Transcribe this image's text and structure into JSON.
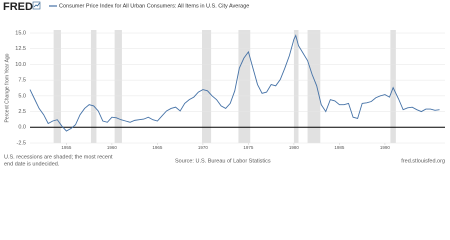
{
  "logo": "FRED",
  "chart_data": {
    "type": "line",
    "y_label": "Percent Change from Year Ago",
    "x": [
      1951.0,
      1951.5,
      1952.0,
      1952.5,
      1953.0,
      1953.5,
      1954.0,
      1954.5,
      1955.0,
      1955.5,
      1956.0,
      1956.5,
      1957.0,
      1957.5,
      1958.0,
      1958.5,
      1959.0,
      1959.5,
      1960.0,
      1960.5,
      1961.0,
      1961.5,
      1962.0,
      1962.5,
      1963.0,
      1963.5,
      1964.0,
      1964.5,
      1965.0,
      1965.5,
      1966.0,
      1966.5,
      1967.0,
      1967.5,
      1968.0,
      1968.5,
      1969.0,
      1969.5,
      1970.0,
      1970.5,
      1971.0,
      1971.5,
      1972.0,
      1972.5,
      1973.0,
      1973.5,
      1974.0,
      1974.5,
      1975.0,
      1975.5,
      1976.0,
      1976.5,
      1977.0,
      1977.5,
      1978.0,
      1978.5,
      1979.0,
      1979.5,
      1980.0,
      1980.2,
      1980.5,
      1981.0,
      1981.5,
      1982.0,
      1982.5,
      1983.0,
      1983.5,
      1984.0,
      1984.5,
      1985.0,
      1985.5,
      1986.0,
      1986.5,
      1987.0,
      1987.5,
      1988.0,
      1988.5,
      1989.0,
      1989.5,
      1990.0,
      1990.5,
      1990.9,
      1991.5,
      1992.0,
      1992.5,
      1993.0,
      1993.5,
      1994.0,
      1994.5,
      1995.0,
      1995.5,
      1996.0
    ],
    "series": [
      {
        "name": "Consumer Price Index for All Urban Consumers: All Items in U.S. City Average",
        "color": "#4572a7",
        "values": [
          6.0,
          4.5,
          3.0,
          2.0,
          0.6,
          1.0,
          1.2,
          0.2,
          -0.6,
          -0.2,
          0.4,
          2.0,
          3.0,
          3.6,
          3.4,
          2.6,
          1.0,
          0.8,
          1.6,
          1.5,
          1.2,
          1.0,
          0.8,
          1.1,
          1.2,
          1.3,
          1.6,
          1.2,
          1.0,
          1.8,
          2.6,
          3.0,
          3.2,
          2.6,
          3.8,
          4.4,
          4.8,
          5.6,
          6.0,
          5.8,
          5.0,
          4.4,
          3.4,
          3.0,
          3.8,
          5.8,
          9.4,
          11.0,
          12.0,
          9.4,
          6.8,
          5.4,
          5.6,
          6.8,
          6.6,
          7.6,
          9.4,
          11.4,
          14.0,
          14.6,
          13.0,
          11.8,
          10.6,
          8.4,
          6.6,
          3.6,
          2.5,
          4.4,
          4.2,
          3.6,
          3.6,
          3.8,
          1.6,
          1.4,
          3.8,
          3.9,
          4.1,
          4.7,
          5.0,
          5.2,
          4.8,
          6.3,
          4.5,
          2.8,
          3.1,
          3.2,
          2.8,
          2.5,
          2.9,
          2.9,
          2.7,
          2.8
        ]
      }
    ],
    "recessions": [
      [
        1953.6,
        1954.4
      ],
      [
        1957.7,
        1958.3
      ],
      [
        1960.3,
        1961.1
      ],
      [
        1969.9,
        1970.9
      ],
      [
        1973.9,
        1975.2
      ],
      [
        1980.0,
        1980.5
      ],
      [
        1981.5,
        1982.9
      ],
      [
        1990.6,
        1991.2
      ]
    ],
    "recession_color": "#e1e1e1",
    "xlim": [
      1951,
      1996.6
    ],
    "xticks": [
      1955,
      1960,
      1965,
      1970,
      1975,
      1980,
      1985,
      1990
    ],
    "ylim": [
      -2.5,
      15
    ],
    "yticks": [
      -2.5,
      {
        "value": 0,
        "label": "0.0"
      },
      2.5,
      {
        "value": 5,
        "label": "5.0"
      },
      7.5,
      {
        "value": 10,
        "label": "10.0"
      },
      12.5,
      {
        "value": 15,
        "label": "15.0"
      }
    ],
    "grid": true,
    "notes": [
      "U.S. recessions are shaded; the most recent",
      "end date is undecided."
    ],
    "source": "Source: U.S. Bureau of Labor Statistics",
    "site": "fred.stlouisfed.org"
  }
}
